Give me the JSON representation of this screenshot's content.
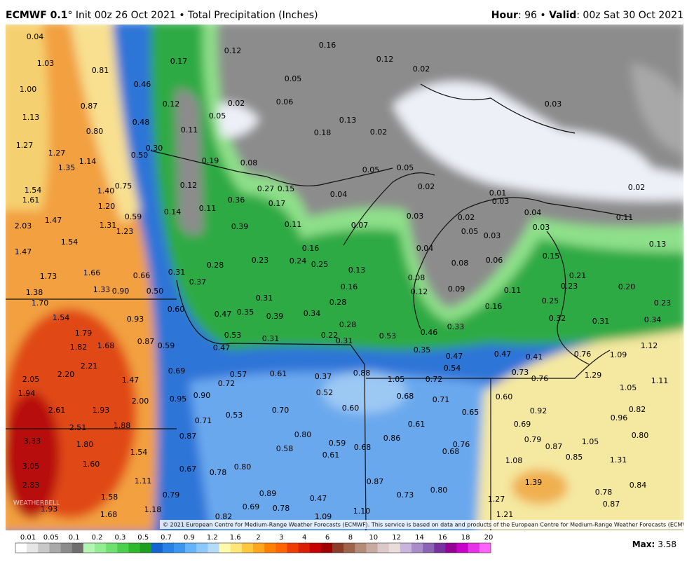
{
  "header": {
    "model": "ECMWF 0.1",
    "info": "° Init 00z 26 Oct 2021 • Total Precipitation (Inches)",
    "hour_label": "Hour",
    "hour": ": 96 • ",
    "valid_label": "Valid",
    "valid": ": 00z Sat 30 Oct 2021"
  },
  "map": {
    "labels": [
      "0.04",
      "1.03",
      "0.81",
      "0.12",
      "0.17",
      "0.16",
      "0.12",
      "0.02",
      "1.00",
      "0.46",
      "0.87",
      "0.12",
      "0.02",
      "0.06",
      "0.05",
      "0.03",
      "1.13",
      "0.48",
      "0.05",
      "0.13",
      "0.80",
      "0.11",
      "0.18",
      "0.02",
      "1.27",
      "0.30",
      "1.27",
      "0.50",
      "0.19",
      "0.08",
      "1.14",
      "1.35",
      "0.05",
      "0.05",
      "0.75",
      "0.12",
      "0.27",
      "0.15",
      "1.54",
      "1.40",
      "0.04",
      "0.02",
      "0.01",
      "0.02",
      "1.61",
      "1.20",
      "0.36",
      "0.17",
      "0.11",
      "0.14",
      "0.03",
      "0.04",
      "0.11",
      "1.47",
      "1.31",
      "0.39",
      "0.11",
      "0.03",
      "0.02",
      "0.07",
      "0.03",
      "2.03",
      "1.23",
      "0.59",
      "0.05",
      "0.03",
      "1.54",
      "1.47",
      "0.16",
      "0.04",
      "0.13",
      "0.15",
      "0.23",
      "0.24",
      "0.25",
      "0.28",
      "0.08",
      "0.06",
      "1.66",
      "1.73",
      "0.66",
      "0.31",
      "0.37",
      "0.13",
      "0.08",
      "0.21",
      "0.23",
      "0.20",
      "1.38",
      "1.33",
      "0.90",
      "0.50",
      "0.16",
      "0.12",
      "0.09",
      "0.11",
      "0.31",
      "0.28",
      "0.25",
      "0.23",
      "1.70",
      "0.60",
      "0.35",
      "0.34",
      "0.16",
      "0.47",
      "0.39",
      "1.54",
      "0.93",
      "0.28",
      "0.32",
      "0.31",
      "0.34",
      "0.33",
      "1.79",
      "0.53",
      "0.22",
      "0.46",
      "0.53",
      "0.31",
      "0.31",
      "0.87",
      "1.82",
      "1.68",
      "0.59",
      "0.47",
      "0.35",
      "0.76",
      "1.09",
      "1.12",
      "0.47",
      "0.47",
      "0.41",
      "2.21",
      "0.69",
      "0.54",
      "0.61",
      "0.88",
      "0.73",
      "0.57",
      "0.37",
      "2.05",
      "2.20",
      "1.47",
      "0.72",
      "1.05",
      "0.72",
      "0.76",
      "1.29",
      "1.11",
      "1.94",
      "0.52",
      "0.68",
      "0.71",
      "0.60",
      "0.95",
      "0.90",
      "1.05",
      "2.00",
      "2.61",
      "1.93",
      "0.70",
      "0.60",
      "0.65",
      "0.92",
      "0.82",
      "0.53",
      "0.96",
      "1.88",
      "2.51",
      "0.71",
      "0.69",
      "0.61",
      "0.80",
      "0.87",
      "0.80",
      "3.33",
      "1.80",
      "0.86",
      "0.79",
      "1.05",
      "0.59",
      "0.76",
      "0.58",
      "0.68",
      "0.87",
      "0.68",
      "1.54",
      "0.61",
      "0.85",
      "1.31",
      "1.08",
      "3.05",
      "1.60",
      "0.80",
      "0.67",
      "0.78",
      "0.84",
      "1.39",
      "1.11",
      "0.87",
      "2.83",
      "0.78",
      "0.89",
      "0.80",
      "0.79",
      "1.58",
      "0.73",
      "0.47",
      "0.87",
      "1.27",
      "1.93",
      "1.18",
      "0.69",
      "0.78",
      "1.10",
      "1.21",
      "1.68",
      "0.82",
      "1.09"
    ],
    "logo": "WEATHERBELL",
    "copyright": "© 2021 European Centre for Medium-Range Weather Forecasts (ECMWF). This service is based on data and products of the European Centre for Medium-Range Weather Forecasts (ECMWF)."
  },
  "colorbar": {
    "labels": [
      "0.01",
      "0.05",
      "0.1",
      "0.2",
      "0.3",
      "0.5",
      "0.7",
      "0.9",
      "1.2",
      "1.6",
      "2",
      "3",
      "4",
      "6",
      "8",
      "10",
      "12",
      "14",
      "16",
      "18",
      "20"
    ],
    "colors": [
      "#ffffff",
      "#e6e6e6",
      "#c8c8c8",
      "#a9a9a9",
      "#8c8c8c",
      "#6e6e6e",
      "#b4f5b4",
      "#90ee90",
      "#6ee06e",
      "#4ccf4c",
      "#2eb82e",
      "#1e9e1e",
      "#1464d2",
      "#2882e6",
      "#3c96f0",
      "#64b4fa",
      "#8cc8fa",
      "#b4dcfa",
      "#fffaaa",
      "#ffe678",
      "#ffc83c",
      "#ffa51e",
      "#ff8000",
      "#ff6400",
      "#f03c00",
      "#dc1e00",
      "#c80000",
      "#a00000",
      "#8c3c28",
      "#a0644b",
      "#b48c78",
      "#c8aaa0",
      "#dcc8c8",
      "#ebdcdc",
      "#c8b4dc",
      "#aa8cc8",
      "#8c64b4",
      "#7832a0",
      "#960096",
      "#c800c8",
      "#e632e6",
      "#ff64ff"
    ],
    "max_label": "Max:",
    "max": "3.58"
  }
}
